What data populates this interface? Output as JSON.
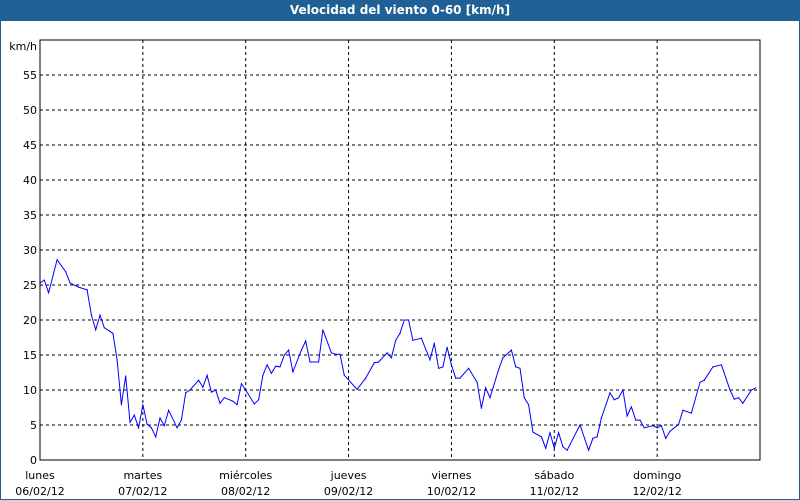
{
  "chart_data": {
    "type": "line",
    "title": "Velocidad del viento 0-60 [km/h]",
    "ylabel": "km/h",
    "xlabel": "",
    "ylim": [
      0,
      60
    ],
    "yticks": [
      0,
      5,
      10,
      15,
      20,
      25,
      30,
      35,
      40,
      45,
      50,
      55
    ],
    "xlim": [
      "2012-02-06 00:00",
      "2012-02-13 00:00"
    ],
    "xticks": [
      {
        "day": "lunes",
        "date": "06/02/12"
      },
      {
        "day": "martes",
        "date": "07/02/12"
      },
      {
        "day": "miércoles",
        "date": "08/02/12"
      },
      {
        "day": "jueves",
        "date": "09/02/12"
      },
      {
        "day": "viernes",
        "date": "10/02/12"
      },
      {
        "day": "sábado",
        "date": "11/02/12"
      },
      {
        "day": "domingo",
        "date": "12/02/12"
      }
    ],
    "grid": true,
    "line_color": "#0000ff",
    "title_bar_color": "#1f6096",
    "series": [
      {
        "points": [
          [
            "2012-02-06 00:00",
            25.3
          ],
          [
            "2012-02-06 01:00",
            25.7
          ],
          [
            "2012-02-06 02:00",
            23.9
          ],
          [
            "2012-02-06 04:00",
            28.6
          ],
          [
            "2012-02-06 06:00",
            26.9
          ],
          [
            "2012-02-06 07:00",
            25.3
          ],
          [
            "2012-02-06 09:00",
            24.7
          ],
          [
            "2012-02-06 11:00",
            24.3
          ],
          [
            "2012-02-06 12:00",
            20.7
          ],
          [
            "2012-02-06 13:00",
            18.6
          ],
          [
            "2012-02-06 14:00",
            20.7
          ],
          [
            "2012-02-06 15:00",
            18.9
          ],
          [
            "2012-02-06 17:00",
            18.1
          ],
          [
            "2012-02-06 18:00",
            14.3
          ],
          [
            "2012-02-06 19:00",
            7.9
          ],
          [
            "2012-02-06 20:00",
            12.0
          ],
          [
            "2012-02-06 21:00",
            5.4
          ],
          [
            "2012-02-06 22:00",
            6.4
          ],
          [
            "2012-02-06 23:00",
            4.6
          ],
          [
            "2012-02-07 00:00",
            7.9
          ],
          [
            "2012-02-07 01:00",
            5.1
          ],
          [
            "2012-02-07 02:00",
            4.6
          ],
          [
            "2012-02-07 03:00",
            3.3
          ],
          [
            "2012-02-07 04:00",
            6.0
          ],
          [
            "2012-02-07 05:00",
            4.9
          ],
          [
            "2012-02-07 06:00",
            7.1
          ],
          [
            "2012-02-07 08:00",
            4.6
          ],
          [
            "2012-02-07 09:00",
            5.7
          ],
          [
            "2012-02-07 10:00",
            9.6
          ],
          [
            "2012-02-07 11:00",
            10.0
          ],
          [
            "2012-02-07 13:00",
            11.4
          ],
          [
            "2012-02-07 14:00",
            10.4
          ],
          [
            "2012-02-07 15:00",
            12.1
          ],
          [
            "2012-02-07 16:00",
            9.7
          ],
          [
            "2012-02-07 17:00",
            10.0
          ],
          [
            "2012-02-07 18:00",
            8.1
          ],
          [
            "2012-02-07 19:00",
            8.9
          ],
          [
            "2012-02-07 21:00",
            8.4
          ],
          [
            "2012-02-07 22:00",
            7.9
          ],
          [
            "2012-02-07 23:00",
            10.9
          ],
          [
            "2012-02-08 00:00",
            10.0
          ],
          [
            "2012-02-08 02:00",
            8.0
          ],
          [
            "2012-02-08 03:00",
            8.6
          ],
          [
            "2012-02-08 04:00",
            12.1
          ],
          [
            "2012-02-08 05:00",
            13.6
          ],
          [
            "2012-02-08 06:00",
            12.4
          ],
          [
            "2012-02-08 07:00",
            13.4
          ],
          [
            "2012-02-08 08:00",
            13.3
          ],
          [
            "2012-02-08 09:00",
            15.0
          ],
          [
            "2012-02-08 10:00",
            15.7
          ],
          [
            "2012-02-08 11:00",
            12.6
          ],
          [
            "2012-02-08 13:00",
            15.7
          ],
          [
            "2012-02-08 14:00",
            17.0
          ],
          [
            "2012-02-08 15:00",
            14.0
          ],
          [
            "2012-02-08 17:00",
            14.0
          ],
          [
            "2012-02-08 18:00",
            18.6
          ],
          [
            "2012-02-08 20:00",
            15.3
          ],
          [
            "2012-02-08 21:00",
            15.1
          ],
          [
            "2012-02-08 22:00",
            15.1
          ],
          [
            "2012-02-08 23:00",
            12.1
          ],
          [
            "2012-02-09 02:00",
            10.1
          ],
          [
            "2012-02-09 04:00",
            11.7
          ],
          [
            "2012-02-09 06:00",
            13.9
          ],
          [
            "2012-02-09 07:00",
            14.0
          ],
          [
            "2012-02-09 09:00",
            15.3
          ],
          [
            "2012-02-09 10:00",
            14.6
          ],
          [
            "2012-02-09 11:00",
            17.1
          ],
          [
            "2012-02-09 12:00",
            18.1
          ],
          [
            "2012-02-09 13:00",
            20.0
          ],
          [
            "2012-02-09 14:00",
            20.0
          ],
          [
            "2012-02-09 15:00",
            17.1
          ],
          [
            "2012-02-09 17:00",
            17.4
          ],
          [
            "2012-02-09 19:00",
            14.3
          ],
          [
            "2012-02-09 20:00",
            16.7
          ],
          [
            "2012-02-09 21:00",
            13.1
          ],
          [
            "2012-02-09 22:00",
            13.3
          ],
          [
            "2012-02-09 23:00",
            16.1
          ],
          [
            "2012-02-10 00:00",
            13.6
          ],
          [
            "2012-02-10 01:00",
            11.7
          ],
          [
            "2012-02-10 02:00",
            11.7
          ],
          [
            "2012-02-10 04:00",
            13.1
          ],
          [
            "2012-02-10 06:00",
            11.1
          ],
          [
            "2012-02-10 07:00",
            7.4
          ],
          [
            "2012-02-10 08:00",
            10.3
          ],
          [
            "2012-02-10 09:00",
            8.9
          ],
          [
            "2012-02-10 11:00",
            12.9
          ],
          [
            "2012-02-10 12:00",
            14.6
          ],
          [
            "2012-02-10 14:00",
            15.7
          ],
          [
            "2012-02-10 15:00",
            13.3
          ],
          [
            "2012-02-10 16:00",
            13.1
          ],
          [
            "2012-02-10 17:00",
            8.9
          ],
          [
            "2012-02-10 18:00",
            7.9
          ],
          [
            "2012-02-10 19:00",
            4.0
          ],
          [
            "2012-02-10 21:00",
            3.3
          ],
          [
            "2012-02-10 22:00",
            1.7
          ],
          [
            "2012-02-10 23:00",
            3.9
          ],
          [
            "2012-02-11 00:00",
            1.7
          ],
          [
            "2012-02-11 01:00",
            3.9
          ],
          [
            "2012-02-11 02:00",
            1.9
          ],
          [
            "2012-02-11 03:00",
            1.4
          ],
          [
            "2012-02-11 06:00",
            5.0
          ],
          [
            "2012-02-11 08:00",
            1.4
          ],
          [
            "2012-02-11 09:00",
            3.1
          ],
          [
            "2012-02-11 10:00",
            3.3
          ],
          [
            "2012-02-11 11:00",
            6.0
          ],
          [
            "2012-02-11 13:00",
            9.6
          ],
          [
            "2012-02-11 14:00",
            8.6
          ],
          [
            "2012-02-11 15:00",
            8.9
          ],
          [
            "2012-02-11 16:00",
            10.0
          ],
          [
            "2012-02-11 17:00",
            6.3
          ],
          [
            "2012-02-11 18:00",
            7.6
          ],
          [
            "2012-02-11 19:00",
            5.7
          ],
          [
            "2012-02-11 20:00",
            5.7
          ],
          [
            "2012-02-11 21:00",
            4.6
          ],
          [
            "2012-02-11 23:00",
            4.9
          ],
          [
            "2012-02-12 00:00",
            4.6
          ],
          [
            "2012-02-12 01:00",
            4.9
          ],
          [
            "2012-02-12 02:00",
            3.1
          ],
          [
            "2012-02-12 03:00",
            4.1
          ],
          [
            "2012-02-12 05:00",
            5.1
          ],
          [
            "2012-02-12 06:00",
            7.1
          ],
          [
            "2012-02-12 08:00",
            6.7
          ],
          [
            "2012-02-12 10:00",
            11.1
          ],
          [
            "2012-02-12 11:00",
            11.4
          ],
          [
            "2012-02-12 13:00",
            13.3
          ],
          [
            "2012-02-12 15:00",
            13.6
          ],
          [
            "2012-02-12 17:00",
            10.0
          ],
          [
            "2012-02-12 18:00",
            8.7
          ],
          [
            "2012-02-12 19:00",
            8.9
          ],
          [
            "2012-02-12 20:00",
            8.1
          ],
          [
            "2012-02-12 22:00",
            10.0
          ],
          [
            "2012-02-12 23:00",
            10.3
          ]
        ]
      }
    ]
  }
}
